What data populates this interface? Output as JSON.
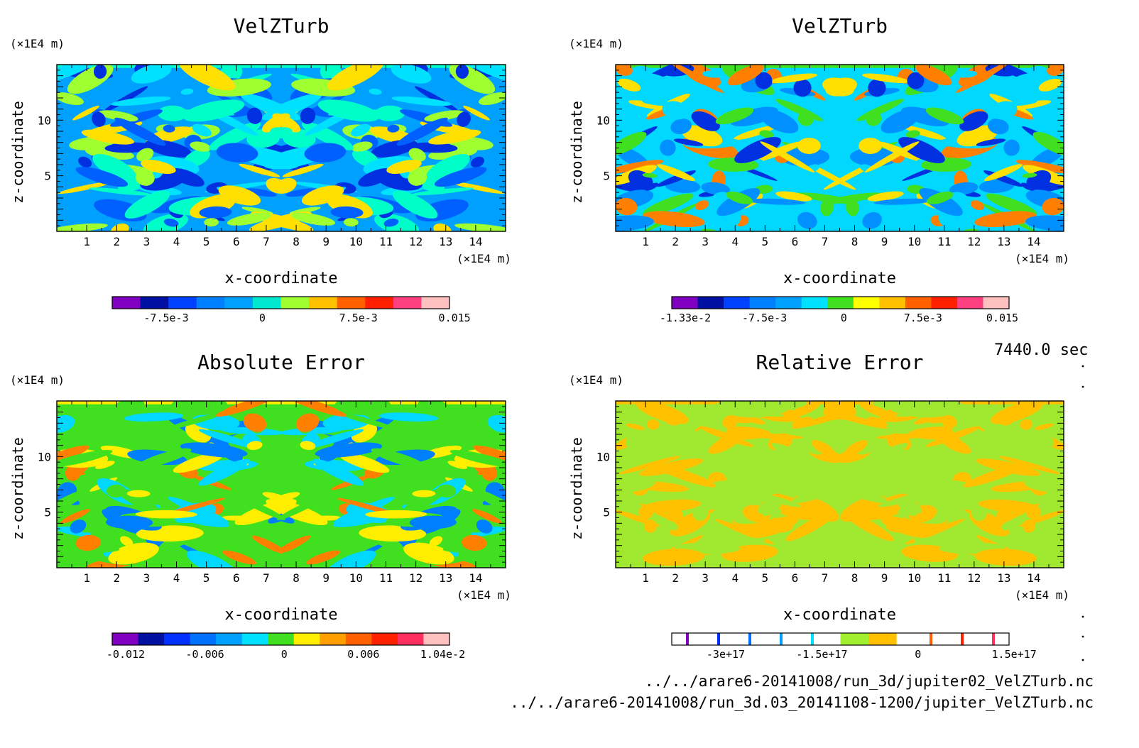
{
  "time_label": "7440.0 sec",
  "files": [
    "../../arare6-20141008/run_3d/jupiter02_VelZTurb.nc",
    "../../arare6-20141008/run_3d.03_20141108-1200/jupiter_VelZTurb.nc"
  ],
  "chart_data": [
    {
      "type": "heatmap",
      "title": "VelZTurb",
      "xlabel": "x-coordinate",
      "ylabel": "z-coordinate",
      "x_unit": "(×1E4 m)",
      "y_unit": "(×1E4 m)",
      "xlim": [
        0,
        15
      ],
      "ylim": [
        0,
        15
      ],
      "x_ticks": [
        "1",
        "2",
        "3",
        "4",
        "5",
        "6",
        "7",
        "8",
        "9",
        "10",
        "11",
        "12",
        "13",
        "14"
      ],
      "y_ticks": [
        "5",
        "10"
      ],
      "field_top_z": 14.7,
      "background_color": "#00ffc8",
      "field_colors": [
        "#00ffc8",
        "#00a0ff",
        "#00e0ff",
        "#00ffc8",
        "#0060ff",
        "#a0ff30",
        "#ffe000",
        "#0030e0"
      ],
      "colorbar": {
        "colors": [
          "#8000c0",
          "#0010a0",
          "#0040ff",
          "#0080ff",
          "#00a0ff",
          "#00e8d0",
          "#a0ff30",
          "#ffc000",
          "#ff6000",
          "#ff2000",
          "#ff4080",
          "#ffc0c0"
        ],
        "labels": [
          "-7.5e-3",
          "0",
          "7.5e-3",
          "0.015"
        ]
      }
    },
    {
      "type": "heatmap",
      "title": "VelZTurb",
      "xlabel": "x-coordinate",
      "ylabel": "z-coordinate",
      "x_unit": "(×1E4 m)",
      "y_unit": "(×1E4 m)",
      "xlim": [
        0,
        15
      ],
      "ylim": [
        0,
        15
      ],
      "x_ticks": [
        "1",
        "2",
        "3",
        "4",
        "5",
        "6",
        "7",
        "8",
        "9",
        "10",
        "11",
        "12",
        "13",
        "14"
      ],
      "y_ticks": [
        "5",
        "10"
      ],
      "field_top_z": 14.7,
      "background_color": "#40e020",
      "field_colors": [
        "#40e020",
        "#00d8ff",
        "#00d8ff",
        "#40e020",
        "#0090ff",
        "#ffe000",
        "#ff8000",
        "#0030e0"
      ],
      "colorbar": {
        "colors": [
          "#8000c0",
          "#0010a0",
          "#0040ff",
          "#0080ff",
          "#00a0ff",
          "#00e0ff",
          "#40e020",
          "#ffff00",
          "#ffc000",
          "#ff6000",
          "#ff2000",
          "#ff4080",
          "#ffc0c0"
        ],
        "labels": [
          "-1.33e-2",
          "-7.5e-3",
          "0",
          "7.5e-3",
          "0.015"
        ]
      }
    },
    {
      "type": "heatmap",
      "title": "Absolute Error",
      "xlabel": "x-coordinate",
      "ylabel": "z-coordinate",
      "x_unit": "(×1E4 m)",
      "y_unit": "(×1E4 m)",
      "xlim": [
        0,
        15
      ],
      "ylim": [
        0,
        15
      ],
      "x_ticks": [
        "1",
        "2",
        "3",
        "4",
        "5",
        "6",
        "7",
        "8",
        "9",
        "10",
        "11",
        "12",
        "13",
        "14"
      ],
      "y_ticks": [
        "5",
        "10"
      ],
      "field_top_z": 14.7,
      "background_color": "#ffee00",
      "field_colors": [
        "#ffee00",
        "#40e020",
        "#40e020",
        "#ffee00",
        "#40e020",
        "#00d8ff",
        "#ff8000",
        "#0080ff"
      ],
      "colorbar": {
        "colors": [
          "#8000c0",
          "#0010a0",
          "#0030ff",
          "#0070ff",
          "#00a0ff",
          "#00e0ff",
          "#40e020",
          "#ffee00",
          "#ffa000",
          "#ff6000",
          "#ff2000",
          "#ff3060",
          "#ffc0c0"
        ],
        "labels": [
          "-0.012",
          "-0.006",
          "0",
          "0.006",
          "1.04e-2"
        ]
      }
    },
    {
      "type": "heatmap",
      "title": "Relative Error",
      "xlabel": "x-coordinate",
      "ylabel": "z-coordinate",
      "x_unit": "(×1E4 m)",
      "y_unit": "(×1E4 m)",
      "xlim": [
        0,
        15
      ],
      "ylim": [
        0,
        15
      ],
      "x_ticks": [
        "1",
        "2",
        "3",
        "4",
        "5",
        "6",
        "7",
        "8",
        "9",
        "10",
        "11",
        "12",
        "13",
        "14"
      ],
      "y_ticks": [
        "5",
        "10"
      ],
      "field_top_z": 14.7,
      "background_color": "#ffc000",
      "field_colors": [
        "#ffc000",
        "#a0e830",
        "#ffc000",
        "#a0e830",
        "#ffc000",
        "#a0e830",
        "#ffc000",
        "#a0e830"
      ],
      "colorbar": {
        "colors": [
          "#ffffff",
          "#ffffff",
          "#ffffff",
          "#ffffff",
          "#ffffff",
          "#ffffff",
          "#a0f030",
          "#ffc000",
          "#ffffff",
          "#ffffff",
          "#ffffff",
          "#ffffff"
        ],
        "line_colors": [
          "#8000c0",
          "#0030ff",
          "#0070ff",
          "#00a0ff",
          "#00e0ff",
          "#ff6000",
          "#ff2000",
          "#ff3060"
        ],
        "labels": [
          "-3e+17",
          "-1.5e+17",
          "0",
          "1.5e+17"
        ]
      }
    }
  ]
}
